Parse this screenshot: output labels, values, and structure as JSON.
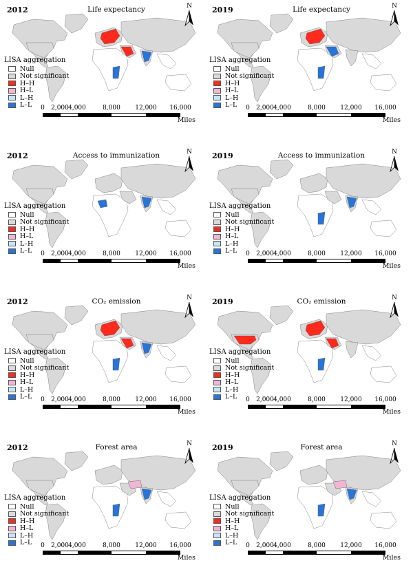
{
  "legend": {
    "title": "LISA aggregation",
    "items": [
      {
        "label": "Null",
        "color": "#ffffff"
      },
      {
        "label": "Not significant",
        "color": "#d9d9d9"
      },
      {
        "label": "H–H",
        "color": "#ff2a1e"
      },
      {
        "label": "H–L",
        "color": "#f2b5d4"
      },
      {
        "label": "L–H",
        "color": "#c6e6f5"
      },
      {
        "label": "L–L",
        "color": "#2874d8"
      }
    ]
  },
  "scale": {
    "ticks": [
      "0",
      "2,000",
      "4,000",
      "8,000",
      "12,000",
      "16,000"
    ],
    "units": "Miles"
  },
  "north_label": "N",
  "panels": [
    {
      "year": "2012",
      "title": "Life expectancy"
    },
    {
      "year": "2019",
      "title": "Life expectancy"
    },
    {
      "year": "2012",
      "title": "Access to immunization"
    },
    {
      "year": "2019",
      "title": "Access to immunization"
    },
    {
      "year": "2012",
      "title": "CO₂ emission"
    },
    {
      "year": "2019",
      "title": "CO₂ emission"
    },
    {
      "year": "2012",
      "title": "Forest area"
    },
    {
      "year": "2019",
      "title": "Forest area"
    }
  ]
}
